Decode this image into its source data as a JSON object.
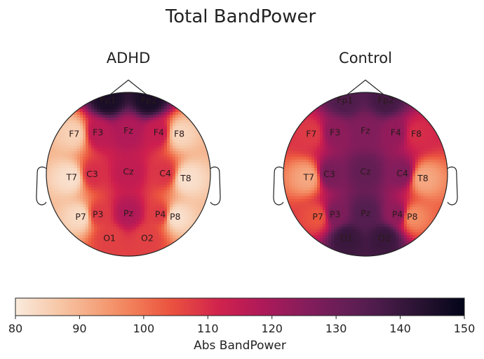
{
  "chart_data": {
    "type": "heatmap",
    "title": "Total BandPower",
    "colorbar": {
      "label": "Abs BandPower",
      "min": 80,
      "max": 150,
      "ticks": [
        80,
        90,
        100,
        110,
        120,
        130,
        140,
        150
      ],
      "colormap": "rocket_r"
    },
    "panels": [
      {
        "name": "ADHD",
        "electrodes": [
          {
            "label": "Fp1",
            "value": 146
          },
          {
            "label": "Fp2",
            "value": 146
          },
          {
            "label": "F7",
            "value": 85
          },
          {
            "label": "F3",
            "value": 116
          },
          {
            "label": "Fz",
            "value": 118
          },
          {
            "label": "F4",
            "value": 114
          },
          {
            "label": "F8",
            "value": 84
          },
          {
            "label": "T7",
            "value": 82
          },
          {
            "label": "C3",
            "value": 110
          },
          {
            "label": "Cz",
            "value": 115
          },
          {
            "label": "C4",
            "value": 109
          },
          {
            "label": "T8",
            "value": 82
          },
          {
            "label": "P7",
            "value": 83
          },
          {
            "label": "P3",
            "value": 108
          },
          {
            "label": "Pz",
            "value": 118
          },
          {
            "label": "P4",
            "value": 108
          },
          {
            "label": "P8",
            "value": 82
          },
          {
            "label": "O1",
            "value": 107
          },
          {
            "label": "O2",
            "value": 107
          }
        ]
      },
      {
        "name": "Control",
        "electrodes": [
          {
            "label": "Fp1",
            "value": 136
          },
          {
            "label": "Fp2",
            "value": 138
          },
          {
            "label": "F7",
            "value": 108
          },
          {
            "label": "F3",
            "value": 124
          },
          {
            "label": "Fz",
            "value": 126
          },
          {
            "label": "F4",
            "value": 123
          },
          {
            "label": "F8",
            "value": 110
          },
          {
            "label": "T7",
            "value": 92
          },
          {
            "label": "C3",
            "value": 128
          },
          {
            "label": "Cz",
            "value": 132
          },
          {
            "label": "C4",
            "value": 126
          },
          {
            "label": "T8",
            "value": 92
          },
          {
            "label": "P7",
            "value": 104
          },
          {
            "label": "P3",
            "value": 127
          },
          {
            "label": "Pz",
            "value": 135
          },
          {
            "label": "P4",
            "value": 124
          },
          {
            "label": "P8",
            "value": 96
          },
          {
            "label": "O1",
            "value": 140
          },
          {
            "label": "O2",
            "value": 140
          }
        ]
      }
    ]
  }
}
